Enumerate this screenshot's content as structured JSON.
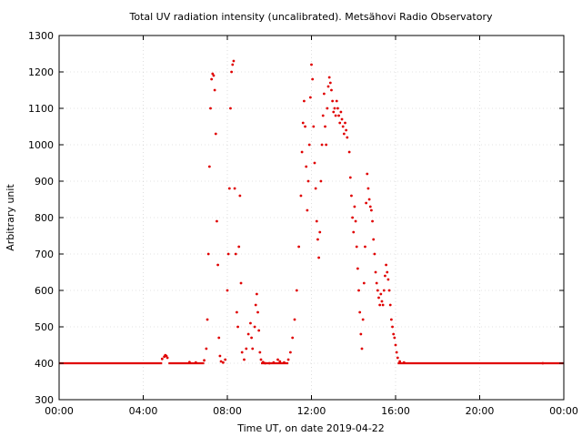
{
  "chart_data": {
    "type": "scatter",
    "title": "Total UV radiation intensity (uncalibrated). Metsähovi Radio Observatory",
    "xlabel": "Time UT, on date 2019-04-22",
    "ylabel": "Arbitrary unit",
    "xlim": [
      0,
      24
    ],
    "ylim": [
      300,
      1300
    ],
    "x_ticks": [
      {
        "value": 0,
        "label": "00:00"
      },
      {
        "value": 4,
        "label": "04:00"
      },
      {
        "value": 8,
        "label": "08:00"
      },
      {
        "value": 12,
        "label": "12:00"
      },
      {
        "value": 16,
        "label": "16:00"
      },
      {
        "value": 20,
        "label": "20:00"
      },
      {
        "value": 24,
        "label": "00:00"
      }
    ],
    "y_ticks": [
      {
        "value": 300,
        "label": "300"
      },
      {
        "value": 400,
        "label": "400"
      },
      {
        "value": 500,
        "label": "500"
      },
      {
        "value": 600,
        "label": "600"
      },
      {
        "value": 700,
        "label": "700"
      },
      {
        "value": 800,
        "label": "800"
      },
      {
        "value": 900,
        "label": "900"
      },
      {
        "value": 1000,
        "label": "1000"
      },
      {
        "value": 1100,
        "label": "1100"
      },
      {
        "value": 1200,
        "label": "1200"
      },
      {
        "value": 1300,
        "label": "1300"
      }
    ],
    "grid": true,
    "series": [
      {
        "color": "#e00000",
        "points": [
          [
            4.9,
            412
          ],
          [
            5.0,
            418
          ],
          [
            5.05,
            422
          ],
          [
            5.1,
            420
          ],
          [
            5.15,
            415
          ],
          [
            6.2,
            403
          ],
          [
            6.5,
            402
          ],
          [
            6.9,
            408
          ],
          [
            7.0,
            440
          ],
          [
            7.05,
            520
          ],
          [
            7.1,
            700
          ],
          [
            7.15,
            940
          ],
          [
            7.2,
            1100
          ],
          [
            7.25,
            1180
          ],
          [
            7.3,
            1195
          ],
          [
            7.35,
            1190
          ],
          [
            7.4,
            1150
          ],
          [
            7.45,
            1030
          ],
          [
            7.5,
            790
          ],
          [
            7.55,
            670
          ],
          [
            7.6,
            470
          ],
          [
            7.65,
            420
          ],
          [
            7.7,
            405
          ],
          [
            7.8,
            402
          ],
          [
            7.9,
            410
          ],
          [
            8.0,
            600
          ],
          [
            8.05,
            700
          ],
          [
            8.1,
            880
          ],
          [
            8.15,
            1100
          ],
          [
            8.2,
            1200
          ],
          [
            8.25,
            1220
          ],
          [
            8.3,
            1230
          ],
          [
            8.35,
            880
          ],
          [
            8.4,
            700
          ],
          [
            8.45,
            540
          ],
          [
            8.5,
            500
          ],
          [
            8.55,
            720
          ],
          [
            8.6,
            860
          ],
          [
            8.65,
            620
          ],
          [
            8.7,
            430
          ],
          [
            8.8,
            410
          ],
          [
            8.9,
            440
          ],
          [
            9.0,
            480
          ],
          [
            9.1,
            510
          ],
          [
            9.15,
            470
          ],
          [
            9.2,
            440
          ],
          [
            9.3,
            500
          ],
          [
            9.35,
            560
          ],
          [
            9.4,
            590
          ],
          [
            9.45,
            540
          ],
          [
            9.5,
            490
          ],
          [
            9.55,
            430
          ],
          [
            9.6,
            410
          ],
          [
            9.7,
            403
          ],
          [
            9.8,
            400
          ],
          [
            10.0,
            400
          ],
          [
            10.2,
            402
          ],
          [
            10.4,
            410
          ],
          [
            10.5,
            405
          ],
          [
            10.7,
            402
          ],
          [
            10.9,
            410
          ],
          [
            11.0,
            430
          ],
          [
            11.1,
            470
          ],
          [
            11.2,
            520
          ],
          [
            11.3,
            600
          ],
          [
            11.4,
            720
          ],
          [
            11.5,
            860
          ],
          [
            11.55,
            980
          ],
          [
            11.6,
            1060
          ],
          [
            11.65,
            1120
          ],
          [
            11.7,
            1050
          ],
          [
            11.75,
            940
          ],
          [
            11.8,
            820
          ],
          [
            11.85,
            900
          ],
          [
            11.9,
            1000
          ],
          [
            11.95,
            1130
          ],
          [
            12.0,
            1220
          ],
          [
            12.05,
            1180
          ],
          [
            12.1,
            1050
          ],
          [
            12.15,
            950
          ],
          [
            12.2,
            880
          ],
          [
            12.25,
            790
          ],
          [
            12.3,
            740
          ],
          [
            12.35,
            690
          ],
          [
            12.4,
            760
          ],
          [
            12.45,
            900
          ],
          [
            12.5,
            1000
          ],
          [
            12.55,
            1080
          ],
          [
            12.6,
            1140
          ],
          [
            12.65,
            1050
          ],
          [
            12.7,
            1000
          ],
          [
            12.75,
            1100
          ],
          [
            12.8,
            1160
          ],
          [
            12.85,
            1185
          ],
          [
            12.9,
            1170
          ],
          [
            12.95,
            1150
          ],
          [
            13.0,
            1120
          ],
          [
            13.05,
            1090
          ],
          [
            13.1,
            1100
          ],
          [
            13.15,
            1080
          ],
          [
            13.2,
            1120
          ],
          [
            13.25,
            1100
          ],
          [
            13.3,
            1080
          ],
          [
            13.35,
            1060
          ],
          [
            13.4,
            1090
          ],
          [
            13.45,
            1070
          ],
          [
            13.5,
            1050
          ],
          [
            13.55,
            1030
          ],
          [
            13.6,
            1060
          ],
          [
            13.65,
            1040
          ],
          [
            13.7,
            1020
          ],
          [
            13.8,
            980
          ],
          [
            13.85,
            910
          ],
          [
            13.9,
            860
          ],
          [
            13.95,
            800
          ],
          [
            14.0,
            760
          ],
          [
            14.05,
            830
          ],
          [
            14.1,
            790
          ],
          [
            14.15,
            720
          ],
          [
            14.2,
            660
          ],
          [
            14.25,
            600
          ],
          [
            14.3,
            540
          ],
          [
            14.35,
            480
          ],
          [
            14.4,
            440
          ],
          [
            14.45,
            520
          ],
          [
            14.5,
            620
          ],
          [
            14.55,
            720
          ],
          [
            14.6,
            840
          ],
          [
            14.65,
            920
          ],
          [
            14.7,
            880
          ],
          [
            14.75,
            850
          ],
          [
            14.8,
            830
          ],
          [
            14.85,
            820
          ],
          [
            14.9,
            790
          ],
          [
            14.95,
            740
          ],
          [
            15.0,
            700
          ],
          [
            15.05,
            650
          ],
          [
            15.1,
            620
          ],
          [
            15.15,
            600
          ],
          [
            15.2,
            580
          ],
          [
            15.25,
            560
          ],
          [
            15.3,
            590
          ],
          [
            15.35,
            570
          ],
          [
            15.4,
            560
          ],
          [
            15.45,
            600
          ],
          [
            15.5,
            640
          ],
          [
            15.55,
            670
          ],
          [
            15.6,
            650
          ],
          [
            15.65,
            630
          ],
          [
            15.7,
            600
          ],
          [
            15.75,
            560
          ],
          [
            15.8,
            520
          ],
          [
            15.85,
            500
          ],
          [
            15.9,
            480
          ],
          [
            15.95,
            470
          ],
          [
            16.0,
            450
          ],
          [
            16.05,
            430
          ],
          [
            16.1,
            415
          ],
          [
            16.2,
            405
          ],
          [
            16.4,
            402
          ],
          [
            23.0,
            400
          ]
        ],
        "baseline_segments": [
          [
            0,
            4.9,
            400
          ],
          [
            5.2,
            6.9,
            400
          ],
          [
            9.6,
            10.9,
            400
          ],
          [
            16.1,
            24,
            400
          ]
        ]
      }
    ]
  }
}
